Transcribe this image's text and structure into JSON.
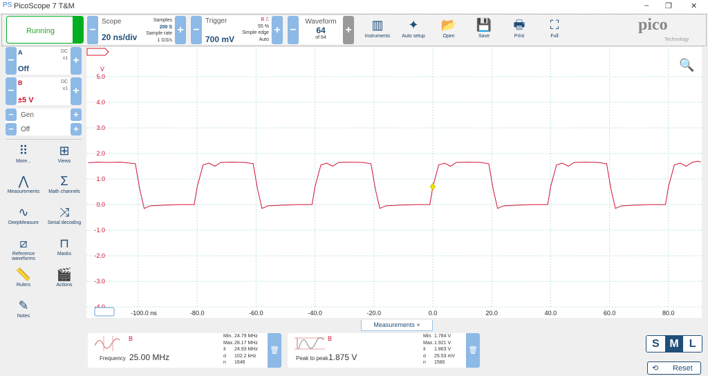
{
  "app": {
    "title": "PicoScope 7 T&M",
    "logo": "pico",
    "logo_sub": "Technology"
  },
  "window_controls": {
    "minimize": "–",
    "restore": "❐",
    "close": "✕"
  },
  "run": {
    "label": "Running",
    "color": "#00b020"
  },
  "scope": {
    "label": "Scope",
    "value": "20 ns/div",
    "samples_label": "Samples",
    "samples": "200 S",
    "rate_label": "Sample rate",
    "rate": "1 GS/s"
  },
  "trigger": {
    "label": "Trigger",
    "channel": "B",
    "edge": "⎍",
    "percent": "55 %",
    "type": "Simple edge",
    "mode": "Auto",
    "level": "700 mV"
  },
  "waveform": {
    "label": "Waveform",
    "value": "64",
    "of": "of 64"
  },
  "toolbar_buttons": [
    {
      "label": "Instruments",
      "icon": "instruments-icon"
    },
    {
      "label": "Auto setup",
      "icon": "auto-setup-icon"
    },
    {
      "label": "Open",
      "icon": "folder-icon"
    },
    {
      "label": "Save",
      "icon": "save-icon"
    },
    {
      "label": "Print",
      "icon": "print-icon"
    },
    {
      "label": "Full",
      "icon": "fullscreen-icon"
    }
  ],
  "channels": [
    {
      "name": "A",
      "coupling": "DC",
      "probe": "x1",
      "range": "Off",
      "color": "#1f4e79"
    },
    {
      "name": "B",
      "coupling": "DC",
      "probe": "x1",
      "range": "±5 V",
      "color": "#d01030"
    }
  ],
  "gen": {
    "label": "Gen",
    "value": "Off"
  },
  "side_tools": [
    {
      "label": "More...",
      "glyph": "⠿"
    },
    {
      "label": "Views",
      "glyph": "⊞"
    },
    {
      "label": "Measurements",
      "glyph": "⋀"
    },
    {
      "label": "Math channels",
      "glyph": "Σ"
    },
    {
      "label": "DeepMeasure",
      "glyph": "∿"
    },
    {
      "label": "Serial decoding",
      "glyph": "⤨"
    },
    {
      "label": "Reference waveforms",
      "glyph": "⧄"
    },
    {
      "label": "Masks",
      "glyph": "⊓"
    },
    {
      "label": "Rulers",
      "glyph": "📏"
    },
    {
      "label": "Actions",
      "glyph": "🎬"
    },
    {
      "label": "Notes",
      "glyph": "✎"
    }
  ],
  "chart_data": {
    "type": "line",
    "xlabel": "ns",
    "ylabel": "V",
    "xlim": [
      -117.6,
      91
    ],
    "ylim": [
      -4.0,
      5.4
    ],
    "grid": true,
    "x_ticks": [
      "-100.0 ns",
      "-80.0",
      "-60.0",
      "-40.0",
      "-20.0",
      "0.0",
      "20.0",
      "40.0",
      "60.0",
      "80.0"
    ],
    "x_tick_values": [
      -100,
      -80,
      -60,
      -40,
      -20,
      0,
      20,
      40,
      60,
      80
    ],
    "y_ticks": [
      "5.0",
      "4.0",
      "3.0",
      "2.0",
      "1.0",
      "0.0",
      "-1.0",
      "-2.0",
      "-3.0",
      "-4.0"
    ],
    "y_tick_values": [
      5,
      4,
      3,
      2,
      1,
      0,
      -1,
      -2,
      -3,
      -4
    ],
    "series": [
      {
        "channel": "B",
        "color": "#d01030",
        "points": [
          [
            -117,
            1.64
          ],
          [
            -114,
            1.66
          ],
          [
            -110,
            1.65
          ],
          [
            -106,
            1.66
          ],
          [
            -101,
            1.6
          ],
          [
            -99.5,
            0.6
          ],
          [
            -98,
            -0.15
          ],
          [
            -96,
            -0.05
          ],
          [
            -91,
            -0.02
          ],
          [
            -86,
            0
          ],
          [
            -81,
            0
          ],
          [
            -80,
            0.7
          ],
          [
            -78,
            1.55
          ],
          [
            -76,
            1.62
          ],
          [
            -74,
            1.5
          ],
          [
            -72,
            1.65
          ],
          [
            -68,
            1.66
          ],
          [
            -64,
            1.65
          ],
          [
            -61,
            1.6
          ],
          [
            -59.5,
            0.6
          ],
          [
            -58,
            -0.15
          ],
          [
            -56,
            -0.05
          ],
          [
            -51,
            -0.02
          ],
          [
            -46,
            0
          ],
          [
            -41,
            0
          ],
          [
            -40,
            0.7
          ],
          [
            -38,
            1.55
          ],
          [
            -36,
            1.62
          ],
          [
            -34,
            1.5
          ],
          [
            -32,
            1.65
          ],
          [
            -28,
            1.66
          ],
          [
            -24,
            1.65
          ],
          [
            -21,
            1.6
          ],
          [
            -19.5,
            0.6
          ],
          [
            -18,
            -0.15
          ],
          [
            -16,
            -0.05
          ],
          [
            -11,
            -0.02
          ],
          [
            -6,
            0
          ],
          [
            -1,
            0
          ],
          [
            0,
            0.7
          ],
          [
            2,
            1.55
          ],
          [
            4,
            1.62
          ],
          [
            6,
            1.5
          ],
          [
            8,
            1.65
          ],
          [
            12,
            1.66
          ],
          [
            16,
            1.65
          ],
          [
            19,
            1.6
          ],
          [
            20.5,
            0.6
          ],
          [
            22,
            -0.15
          ],
          [
            24,
            -0.05
          ],
          [
            29,
            -0.02
          ],
          [
            34,
            0
          ],
          [
            39,
            0
          ],
          [
            40,
            0.7
          ],
          [
            42,
            1.55
          ],
          [
            44,
            1.62
          ],
          [
            46,
            1.5
          ],
          [
            48,
            1.65
          ],
          [
            52,
            1.66
          ],
          [
            56,
            1.65
          ],
          [
            59,
            1.6
          ],
          [
            60.5,
            0.6
          ],
          [
            62,
            -0.15
          ],
          [
            64,
            -0.05
          ],
          [
            69,
            -0.02
          ],
          [
            74,
            0
          ],
          [
            79,
            0
          ],
          [
            80,
            0.7
          ],
          [
            82,
            1.55
          ],
          [
            84,
            1.62
          ],
          [
            86,
            1.5
          ],
          [
            88,
            1.65
          ],
          [
            90,
            1.7
          ],
          [
            91,
            1.66
          ]
        ]
      }
    ],
    "trigger_point": [
      0,
      0.7
    ],
    "trigger_color": "#f0e000"
  },
  "measurements_tab": {
    "label": "Measurements",
    "close": "×"
  },
  "measurements": [
    {
      "name": "Frequency",
      "channel": "B",
      "value": "25.00 MHz",
      "stats": [
        [
          "Min.",
          "24.79 MHz"
        ],
        [
          "Max.",
          "28.17 MHz"
        ],
        [
          "x̄",
          "24.93 MHz"
        ],
        [
          "σ",
          "102.2 kHz"
        ],
        [
          "n",
          "1646"
        ]
      ]
    },
    {
      "name": "Peak to peak",
      "channel": "B",
      "value": "1.875 V",
      "stats": [
        [
          "Min.",
          "1.784 V"
        ],
        [
          "Max.",
          "1.921 V"
        ],
        [
          "x̄",
          "1.863 V"
        ],
        [
          "σ",
          "25.53 mV"
        ],
        [
          "n",
          "1580"
        ]
      ]
    }
  ],
  "size_buttons": [
    "S",
    "M",
    "L"
  ],
  "size_selected": "M",
  "reset": {
    "label": "Reset"
  }
}
